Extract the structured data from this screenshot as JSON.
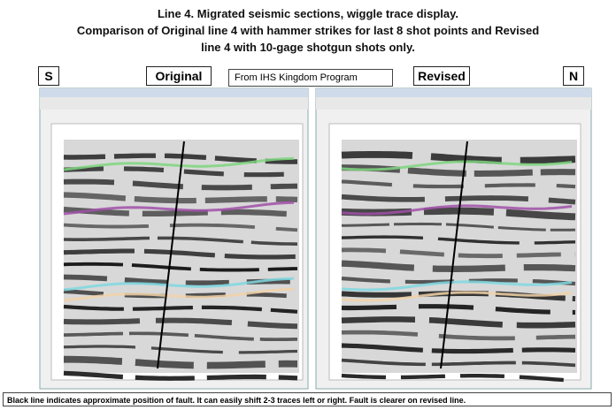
{
  "title_lines": [
    "Line 4.  Migrated seismic sections, wiggle trace display.",
    "Comparison of Original line 4 with hammer strikes for last 8 shot points and Revised",
    "line 4 with 10-gage shotgun shots only."
  ],
  "labels": {
    "south": "S",
    "original": "Original",
    "source": "From IHS Kingdom Program",
    "revised": "Revised",
    "north": "N"
  },
  "caption": "Black line indicates approximate position of fault.  It can easily shift 2-3 traces left or right.  Fault is clearer on revised line."
}
